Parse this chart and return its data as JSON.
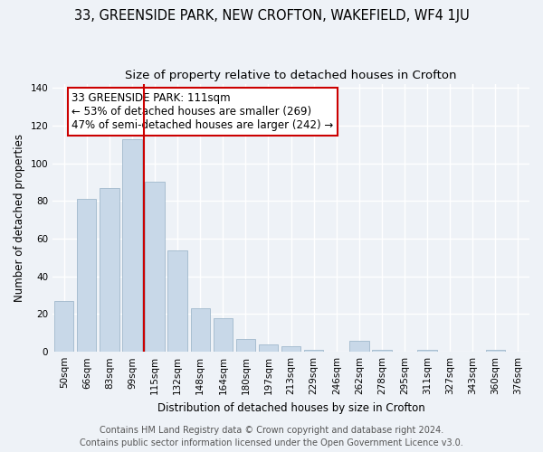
{
  "title": "33, GREENSIDE PARK, NEW CROFTON, WAKEFIELD, WF4 1JU",
  "subtitle": "Size of property relative to detached houses in Crofton",
  "xlabel": "Distribution of detached houses by size in Crofton",
  "ylabel": "Number of detached properties",
  "bar_labels": [
    "50sqm",
    "66sqm",
    "83sqm",
    "99sqm",
    "115sqm",
    "132sqm",
    "148sqm",
    "164sqm",
    "180sqm",
    "197sqm",
    "213sqm",
    "229sqm",
    "246sqm",
    "262sqm",
    "278sqm",
    "295sqm",
    "311sqm",
    "327sqm",
    "343sqm",
    "360sqm",
    "376sqm"
  ],
  "bar_values": [
    27,
    81,
    87,
    113,
    90,
    54,
    23,
    18,
    7,
    4,
    3,
    1,
    0,
    6,
    1,
    0,
    1,
    0,
    0,
    1,
    0
  ],
  "bar_color": "#c8d8e8",
  "bar_edge_color": "#a0b8cc",
  "vline_color": "#cc0000",
  "annotation_text": "33 GREENSIDE PARK: 111sqm\n← 53% of detached houses are smaller (269)\n47% of semi-detached houses are larger (242) →",
  "annotation_box_color": "#ffffff",
  "annotation_box_edge": "#cc0000",
  "ylim": [
    0,
    142
  ],
  "yticks": [
    0,
    20,
    40,
    60,
    80,
    100,
    120,
    140
  ],
  "footer_line1": "Contains HM Land Registry data © Crown copyright and database right 2024.",
  "footer_line2": "Contains public sector information licensed under the Open Government Licence v3.0.",
  "background_color": "#eef2f7",
  "grid_color": "#ffffff",
  "title_fontsize": 10.5,
  "subtitle_fontsize": 9.5,
  "axis_label_fontsize": 8.5,
  "tick_fontsize": 7.5,
  "annotation_fontsize": 8.5,
  "footer_fontsize": 7.0
}
